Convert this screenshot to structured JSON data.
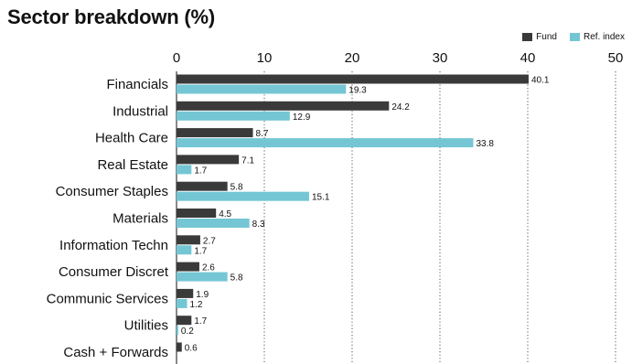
{
  "title": "Sector breakdown (%)",
  "legend": [
    {
      "label": "Fund",
      "color": "#3a3a3a"
    },
    {
      "label": "Ref. index",
      "color": "#74c6d4"
    }
  ],
  "chart_data": {
    "type": "bar",
    "orientation": "horizontal",
    "title": "Sector breakdown (%)",
    "categories": [
      "Financials",
      "Industrial",
      "Health Care",
      "Real Estate",
      "Consumer Staples",
      "Materials",
      "Information Techn",
      "Consumer Discret",
      "Communic Services",
      "Utilities",
      "Cash + Forwards"
    ],
    "series": [
      {
        "name": "Fund",
        "color": "#3a3a3a",
        "values": [
          40.1,
          24.2,
          8.7,
          7.1,
          5.8,
          4.5,
          2.7,
          2.6,
          1.9,
          1.7,
          0.6
        ],
        "labels": [
          "40.1",
          "24.2",
          "8.7",
          "7.1",
          "5.8",
          "4.5",
          "2.7",
          "2.6",
          "1.9",
          "1.7",
          "0.6"
        ]
      },
      {
        "name": "Ref. index",
        "color": "#74c6d4",
        "values": [
          19.3,
          12.9,
          33.8,
          1.7,
          15.1,
          8.3,
          1.7,
          5.8,
          1.2,
          0.2,
          null
        ],
        "labels": [
          "19.3",
          "12.9",
          "33.8",
          "1.7",
          "15.1",
          "8.3",
          "1.7",
          "5.8",
          "1.2",
          "0.2",
          ""
        ]
      }
    ],
    "xticks": [
      "0",
      "10",
      "20",
      "30",
      "40",
      "50"
    ],
    "xlim": [
      0,
      50
    ],
    "grid": "vertical dotted",
    "axis_position": "top",
    "legend_position": "top-right"
  }
}
